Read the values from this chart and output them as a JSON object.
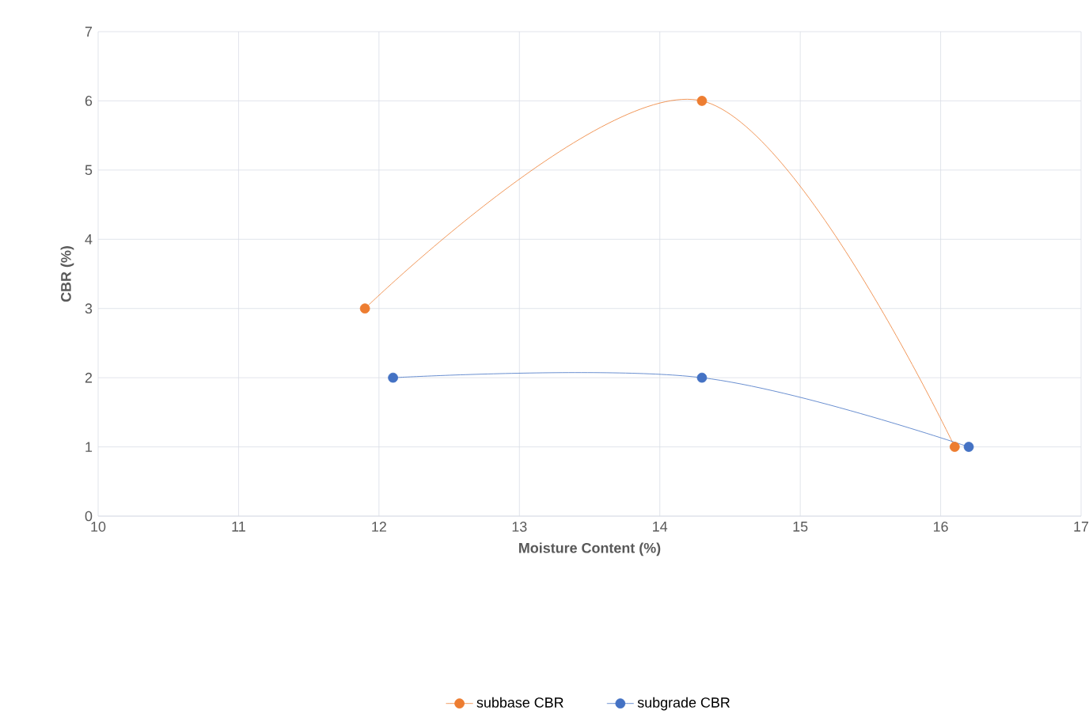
{
  "chart_data": {
    "type": "line",
    "xlabel": "Moisture Content (%)",
    "ylabel": "CBR (%)",
    "xlim": [
      10,
      17
    ],
    "xticks": [
      10,
      11,
      12,
      13,
      14,
      15,
      16,
      17
    ],
    "ylim": [
      0,
      7
    ],
    "yticks": [
      0,
      1,
      2,
      3,
      4,
      5,
      6,
      7
    ],
    "grid": true,
    "legend": "bottom",
    "marker": "circle",
    "line_style": "solid",
    "series": [
      {
        "name": "subbase CBR",
        "color": "#ed7d31",
        "x": [
          11.9,
          14.3,
          16.1
        ],
        "values": [
          3,
          6,
          1
        ]
      },
      {
        "name": "subgrade CBR",
        "color": "#4472c4",
        "x": [
          12.1,
          14.3,
          16.2
        ],
        "values": [
          2,
          2,
          1
        ]
      }
    ]
  }
}
